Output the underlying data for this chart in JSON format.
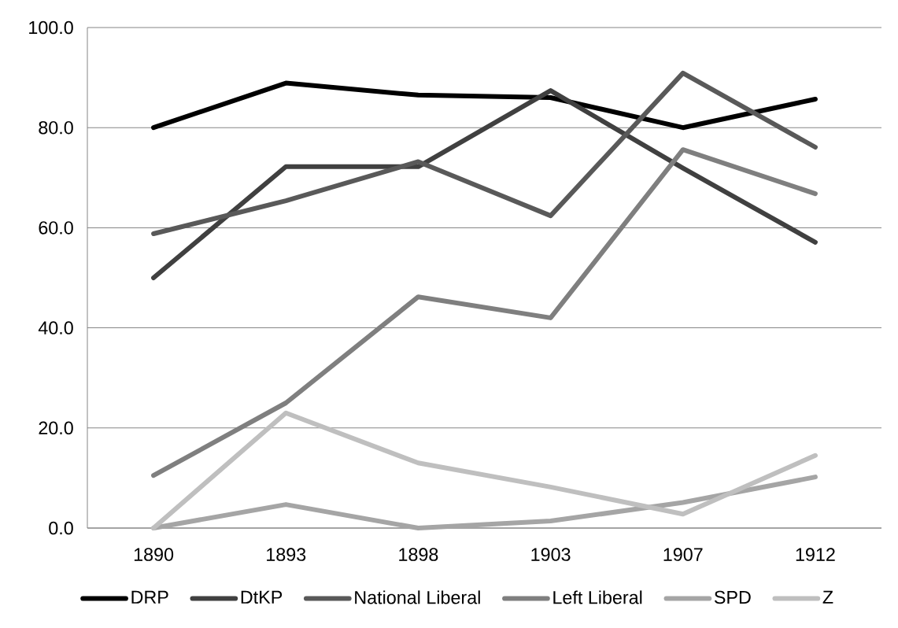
{
  "chart_data": {
    "type": "line",
    "categories": [
      "1890",
      "1893",
      "1898",
      "1903",
      "1907",
      "1912"
    ],
    "series": [
      {
        "name": "DRP",
        "color": "#000000",
        "values": [
          80.0,
          88.9,
          86.5,
          86.0,
          80.0,
          85.7
        ]
      },
      {
        "name": "DtKP",
        "color": "#404040",
        "values": [
          50.0,
          72.2,
          72.2,
          87.4,
          71.9,
          57.1
        ]
      },
      {
        "name": "National Liberal",
        "color": "#595959",
        "values": [
          58.8,
          65.4,
          73.2,
          62.4,
          90.9,
          76.1
        ]
      },
      {
        "name": "Left Liberal",
        "color": "#7f7f7f",
        "values": [
          10.5,
          25.0,
          46.2,
          42.0,
          75.6,
          66.8
        ]
      },
      {
        "name": "SPD",
        "color": "#a5a5a5",
        "values": [
          0.0,
          4.7,
          0.0,
          1.4,
          5.1,
          10.2
        ]
      },
      {
        "name": "Z",
        "color": "#bfbfbf",
        "values": [
          0.0,
          23.0,
          13.0,
          8.2,
          2.8,
          14.5
        ]
      }
    ],
    "ylim": [
      0,
      100
    ],
    "yticks": [
      {
        "value": 0,
        "label": "0.0"
      },
      {
        "value": 20,
        "label": "20.0"
      },
      {
        "value": 40,
        "label": "40.0"
      },
      {
        "value": 60,
        "label": "60.0"
      },
      {
        "value": 80,
        "label": "80.0"
      },
      {
        "value": 100,
        "label": "100.0"
      }
    ],
    "grid": "y",
    "legend": "bottom",
    "marker": "none",
    "line_style": "solid"
  }
}
